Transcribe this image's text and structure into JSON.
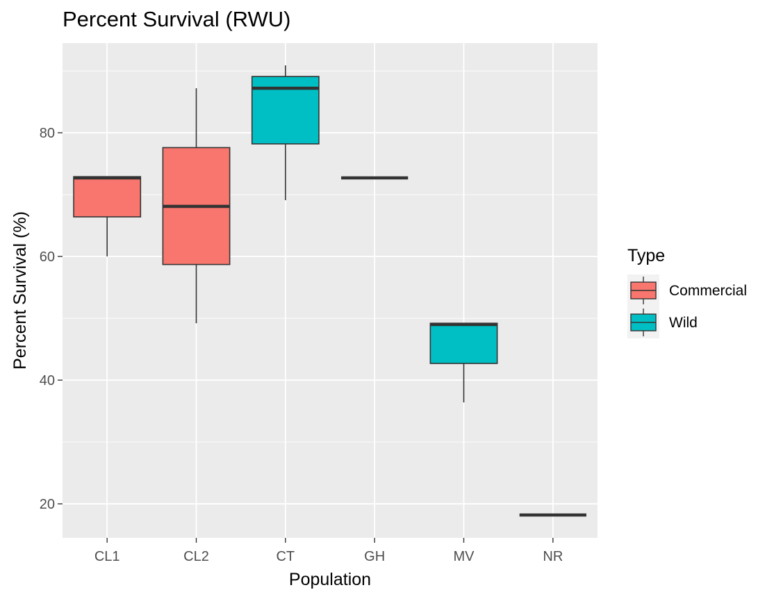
{
  "chart_data": {
    "type": "box",
    "title": "Percent Survival (RWU)",
    "xlabel": "Population",
    "ylabel": "Percent Survival (%)",
    "ylim": [
      14.5,
      94.5
    ],
    "yticks": [
      20,
      40,
      60,
      80
    ],
    "grid": true,
    "legend_position": "right",
    "legend": {
      "title": "Type",
      "entries": [
        {
          "name": "Commercial",
          "color": "#F8766D"
        },
        {
          "name": "Wild",
          "color": "#00BFC4"
        }
      ]
    },
    "categories": [
      "CL1",
      "CL2",
      "CT",
      "GH",
      "MV",
      "NR"
    ],
    "boxes": [
      {
        "category": "CL1",
        "type": "Commercial",
        "min": 60,
        "q1": 66.4,
        "median": 72.7,
        "q3": 72.9,
        "max": 72.9
      },
      {
        "category": "CL2",
        "type": "Commercial",
        "min": 49.2,
        "q1": 58.7,
        "median": 68.1,
        "q3": 77.6,
        "max": 87.2
      },
      {
        "category": "CT",
        "type": "Wild",
        "min": 69.1,
        "q1": 78.2,
        "median": 87.2,
        "q3": 89.1,
        "max": 90.9
      },
      {
        "category": "GH",
        "type": "Wild",
        "min": 72.7,
        "q1": 72.7,
        "median": 72.7,
        "q3": 72.7,
        "max": 72.7
      },
      {
        "category": "MV",
        "type": "Wild",
        "min": 36.4,
        "q1": 42.7,
        "median": 49.0,
        "q3": 49.2,
        "max": 49.2
      },
      {
        "category": "NR",
        "type": "Wild",
        "min": 18.2,
        "q1": 18.2,
        "median": 18.2,
        "q3": 18.2,
        "max": 18.2
      }
    ]
  }
}
